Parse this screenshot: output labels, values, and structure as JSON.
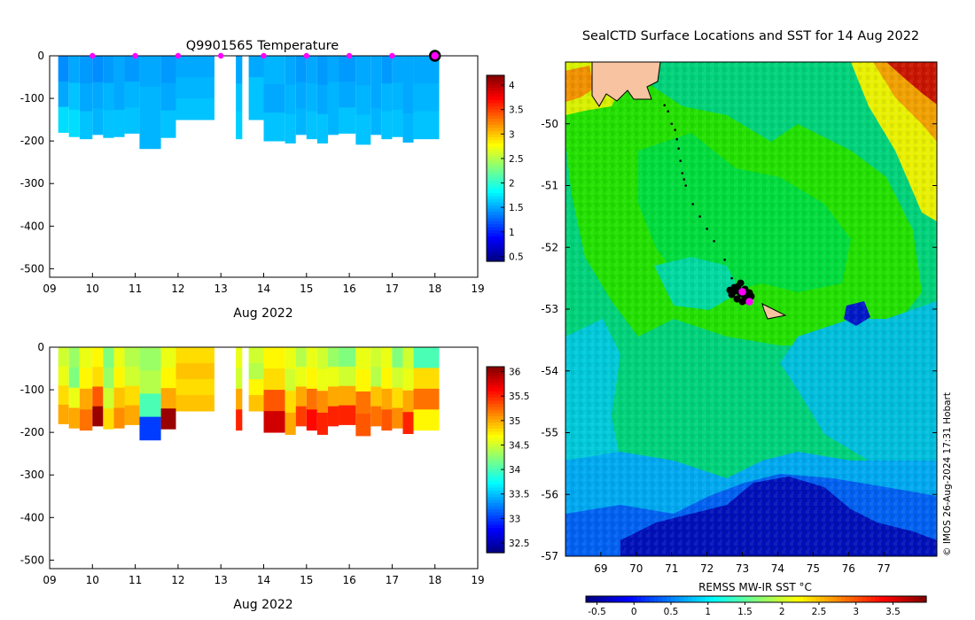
{
  "chart_data": [
    {
      "type": "heatmap",
      "title": "Q9901565  Temperature",
      "xlabel": "Aug 2022",
      "ylabel": "",
      "x_ticks": [
        "09",
        "10",
        "11",
        "12",
        "13",
        "14",
        "15",
        "16",
        "17",
        "18",
        "19"
      ],
      "xlim": [
        9,
        19
      ],
      "y_ticks": [
        0,
        -100,
        -200,
        -300,
        -400,
        -500
      ],
      "ylim": [
        -520,
        0
      ],
      "colorbar": {
        "ticks": [
          "0.5",
          "1",
          "1.5",
          "2",
          "2.5",
          "3",
          "3.5",
          "4"
        ],
        "range": [
          0.4,
          4.2
        ],
        "colormap": "jet"
      },
      "surface_markers": {
        "x": [
          10,
          11,
          12,
          13,
          14,
          15,
          16,
          17
        ],
        "color": "#ff00ff"
      },
      "current_marker": {
        "x": 18.0,
        "y": 0
      },
      "profiles": [
        {
          "x0": 9.2,
          "x1": 9.45,
          "depth": 180,
          "values": [
            1.4,
            1.5,
            1.7
          ]
        },
        {
          "x0": 9.45,
          "x1": 9.7,
          "depth": 190,
          "values": [
            1.5,
            1.6,
            1.7
          ]
        },
        {
          "x0": 9.7,
          "x1": 10.0,
          "depth": 195,
          "values": [
            1.45,
            1.5,
            1.6
          ]
        },
        {
          "x0": 10.0,
          "x1": 10.25,
          "depth": 185,
          "values": [
            1.4,
            1.5,
            1.55
          ]
        },
        {
          "x0": 10.25,
          "x1": 10.5,
          "depth": 192,
          "values": [
            1.45,
            1.55,
            1.6
          ]
        },
        {
          "x0": 10.5,
          "x1": 10.75,
          "depth": 190,
          "values": [
            1.5,
            1.5,
            1.6
          ]
        },
        {
          "x0": 10.75,
          "x1": 11.1,
          "depth": 182,
          "values": [
            1.45,
            1.55,
            1.6
          ]
        },
        {
          "x0": 11.1,
          "x1": 11.6,
          "depth": 218,
          "values": [
            1.5,
            1.55,
            1.55
          ]
        },
        {
          "x0": 11.6,
          "x1": 11.95,
          "depth": 192,
          "values": [
            1.45,
            1.5,
            1.6
          ]
        },
        {
          "x0": 11.95,
          "x1": 12.85,
          "depth": 150,
          "values": [
            1.5,
            1.55,
            1.6
          ]
        },
        {
          "x0": 13.35,
          "x1": 13.5,
          "depth": 195,
          "values": [
            1.5,
            1.6,
            1.65
          ]
        },
        {
          "x0": 13.65,
          "x1": 14.0,
          "depth": 150,
          "values": [
            1.5,
            1.6,
            1.6
          ]
        },
        {
          "x0": 14.0,
          "x1": 14.5,
          "depth": 200,
          "values": [
            1.55,
            1.5,
            1.6
          ]
        },
        {
          "x0": 14.5,
          "x1": 14.75,
          "depth": 205,
          "values": [
            1.5,
            1.55,
            1.6
          ]
        },
        {
          "x0": 14.75,
          "x1": 15.0,
          "depth": 185,
          "values": [
            1.45,
            1.5,
            1.55
          ]
        },
        {
          "x0": 15.0,
          "x1": 15.25,
          "depth": 195,
          "values": [
            1.5,
            1.55,
            1.6
          ]
        },
        {
          "x0": 15.25,
          "x1": 15.5,
          "depth": 205,
          "values": [
            1.45,
            1.5,
            1.6
          ]
        },
        {
          "x0": 15.5,
          "x1": 15.75,
          "depth": 185,
          "values": [
            1.5,
            1.55,
            1.55
          ]
        },
        {
          "x0": 15.75,
          "x1": 16.15,
          "depth": 182,
          "values": [
            1.45,
            1.5,
            1.6
          ]
        },
        {
          "x0": 16.15,
          "x1": 16.5,
          "depth": 208,
          "values": [
            1.5,
            1.55,
            1.6
          ]
        },
        {
          "x0": 16.5,
          "x1": 16.75,
          "depth": 185,
          "values": [
            1.5,
            1.5,
            1.55
          ]
        },
        {
          "x0": 16.75,
          "x1": 17.0,
          "depth": 195,
          "values": [
            1.45,
            1.55,
            1.6
          ]
        },
        {
          "x0": 17.0,
          "x1": 17.25,
          "depth": 190,
          "values": [
            1.5,
            1.55,
            1.6
          ]
        },
        {
          "x0": 17.25,
          "x1": 17.5,
          "depth": 203,
          "values": [
            1.5,
            1.5,
            1.55
          ]
        },
        {
          "x0": 17.5,
          "x1": 18.1,
          "depth": 195,
          "values": [
            1.5,
            1.55,
            1.6
          ]
        }
      ]
    },
    {
      "type": "heatmap",
      "title": "",
      "xlabel": "Aug 2022",
      "ylabel": "",
      "x_ticks": [
        "09",
        "10",
        "11",
        "12",
        "13",
        "14",
        "15",
        "16",
        "17",
        "18",
        "19"
      ],
      "xlim": [
        9,
        19
      ],
      "y_ticks": [
        0,
        -100,
        -200,
        -300,
        -400,
        -500
      ],
      "ylim": [
        -520,
        0
      ],
      "colorbar": {
        "ticks": [
          "32.5",
          "33",
          "33.5",
          "34",
          "34.5",
          "35",
          "35.5",
          "36"
        ],
        "range": [
          32.3,
          36.1
        ],
        "colormap": "jet"
      },
      "profiles": [
        {
          "x0": 9.2,
          "x1": 9.45,
          "depth": 180,
          "values": [
            34.5,
            34.6,
            34.8,
            35.0
          ]
        },
        {
          "x0": 9.45,
          "x1": 9.7,
          "depth": 190,
          "values": [
            34.3,
            34.2,
            34.6,
            35.0
          ]
        },
        {
          "x0": 9.7,
          "x1": 10.0,
          "depth": 195,
          "values": [
            34.6,
            34.7,
            35.0,
            35.2
          ]
        },
        {
          "x0": 10.0,
          "x1": 10.25,
          "depth": 185,
          "values": [
            34.7,
            34.8,
            35.3,
            36.0
          ]
        },
        {
          "x0": 10.25,
          "x1": 10.5,
          "depth": 192,
          "values": [
            34.2,
            34.3,
            34.5,
            34.8
          ]
        },
        {
          "x0": 10.5,
          "x1": 10.75,
          "depth": 190,
          "values": [
            34.6,
            34.7,
            34.9,
            35.1
          ]
        },
        {
          "x0": 10.75,
          "x1": 11.1,
          "depth": 182,
          "values": [
            34.4,
            34.5,
            34.8,
            35.0
          ]
        },
        {
          "x0": 11.1,
          "x1": 11.6,
          "depth": 218,
          "values": [
            34.3,
            34.4,
            34.0,
            33.0
          ]
        },
        {
          "x0": 11.6,
          "x1": 11.95,
          "depth": 192,
          "values": [
            34.6,
            34.7,
            35.0,
            36.0
          ]
        },
        {
          "x0": 11.95,
          "x1": 12.85,
          "depth": 150,
          "values": [
            34.8,
            34.9,
            34.8,
            34.9
          ]
        },
        {
          "x0": 13.35,
          "x1": 13.5,
          "depth": 195,
          "values": [
            34.6,
            34.5,
            35.0,
            35.5
          ]
        },
        {
          "x0": 13.65,
          "x1": 14.0,
          "depth": 150,
          "values": [
            34.5,
            34.4,
            34.7,
            34.9
          ]
        },
        {
          "x0": 14.0,
          "x1": 14.5,
          "depth": 200,
          "values": [
            34.7,
            34.8,
            35.3,
            35.8
          ]
        },
        {
          "x0": 14.5,
          "x1": 14.75,
          "depth": 205,
          "values": [
            34.6,
            34.5,
            34.8,
            35.0
          ]
        },
        {
          "x0": 14.75,
          "x1": 15.0,
          "depth": 185,
          "values": [
            34.4,
            34.6,
            35.0,
            35.4
          ]
        },
        {
          "x0": 15.0,
          "x1": 15.25,
          "depth": 195,
          "values": [
            34.6,
            34.7,
            35.2,
            35.6
          ]
        },
        {
          "x0": 15.25,
          "x1": 15.5,
          "depth": 205,
          "values": [
            34.5,
            34.6,
            35.1,
            35.5
          ]
        },
        {
          "x0": 15.5,
          "x1": 15.75,
          "depth": 185,
          "values": [
            34.3,
            34.6,
            35.0,
            35.5
          ]
        },
        {
          "x0": 15.75,
          "x1": 16.15,
          "depth": 182,
          "values": [
            34.2,
            34.5,
            35.0,
            35.5
          ]
        },
        {
          "x0": 16.15,
          "x1": 16.5,
          "depth": 208,
          "values": [
            34.6,
            34.7,
            35.2,
            35.3
          ]
        },
        {
          "x0": 16.5,
          "x1": 16.75,
          "depth": 185,
          "values": [
            34.5,
            34.4,
            34.9,
            35.2
          ]
        },
        {
          "x0": 16.75,
          "x1": 17.0,
          "depth": 195,
          "values": [
            34.6,
            34.7,
            35.0,
            35.3
          ]
        },
        {
          "x0": 17.0,
          "x1": 17.25,
          "depth": 190,
          "values": [
            34.2,
            34.5,
            34.8,
            35.1
          ]
        },
        {
          "x0": 17.25,
          "x1": 17.5,
          "depth": 203,
          "values": [
            34.5,
            34.6,
            35.0,
            35.5
          ]
        },
        {
          "x0": 17.5,
          "x1": 18.1,
          "depth": 195,
          "values": [
            34.0,
            34.8,
            35.2,
            34.7
          ]
        }
      ]
    },
    {
      "type": "heatmap",
      "title": "SealCTD Surface Locations and SST for 14 Aug 2022",
      "xlabel": "",
      "ylabel": "",
      "x_ticks": [
        69,
        70,
        71,
        72,
        73,
        74,
        75,
        76,
        77
      ],
      "xlim": [
        68,
        78.5
      ],
      "y_ticks": [
        -50,
        -51,
        -52,
        -53,
        -54,
        -55,
        -56,
        -57
      ],
      "ylim": [
        -57,
        -49
      ],
      "colorbar": {
        "label": "REMSS MW-IR SST °C",
        "ticks": [
          "-0.5",
          "0",
          "0.5",
          "1",
          "1.5",
          "2",
          "2.5",
          "3",
          "3.5"
        ],
        "range": [
          -0.65,
          3.95
        ],
        "colormap": "jet"
      },
      "track_points": [
        [
          70.8,
          -49.7
        ],
        [
          70.9,
          -49.8
        ],
        [
          71.0,
          -50.0
        ],
        [
          71.1,
          -50.1
        ],
        [
          71.15,
          -50.25
        ],
        [
          71.2,
          -50.4
        ],
        [
          71.25,
          -50.6
        ],
        [
          71.3,
          -50.8
        ],
        [
          71.35,
          -50.9
        ],
        [
          71.4,
          -51.0
        ],
        [
          71.6,
          -51.3
        ],
        [
          71.8,
          -51.5
        ],
        [
          72.0,
          -51.7
        ],
        [
          72.2,
          -51.9
        ],
        [
          72.5,
          -52.2
        ],
        [
          72.7,
          -52.5
        ],
        [
          72.9,
          -52.65
        ]
      ],
      "cluster_center": [
        72.95,
        -52.75
      ],
      "current_positions": [
        [
          73.0,
          -52.72
        ],
        [
          73.2,
          -52.88
        ]
      ],
      "land": "white-outlined tan"
    }
  ],
  "credit": "© IMOS 26-Aug-2024 17:31 Hobart"
}
